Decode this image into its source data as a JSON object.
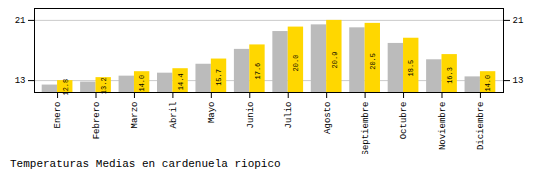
{
  "chart_data": {
    "type": "bar",
    "subtitle": "Temperaturas Medias en cardenuela riopico",
    "categories": [
      "Enero",
      "Febrero",
      "Marzo",
      "Abril",
      "Mayo",
      "Junio",
      "Julio",
      "Agosto",
      "Septiembre",
      "Octubre",
      "Noviembre",
      "Diciembre"
    ],
    "series": [
      {
        "color": "#BBBBBB",
        "values": [
          12.2,
          12.6,
          13.4,
          13.8,
          15.0,
          17.0,
          19.4,
          20.3,
          19.9,
          17.8,
          15.6,
          13.3
        ]
      },
      {
        "color": "#FFD700",
        "values": [
          12.8,
          13.2,
          14.0,
          14.4,
          15.7,
          17.6,
          20.0,
          20.9,
          20.5,
          18.5,
          16.3,
          14.0
        ],
        "data_labels": true,
        "value_labels": [
          "12.8",
          "13.2",
          "14.0",
          "14.4",
          "15.7",
          "17.6",
          "20.0",
          "20.9",
          "20.5",
          "18.5",
          "16.3",
          "14.0"
        ]
      }
    ],
    "ylim": [
      11.2,
      22.5
    ],
    "yticks": [
      12.8,
      20.9
    ],
    "grid": true
  }
}
